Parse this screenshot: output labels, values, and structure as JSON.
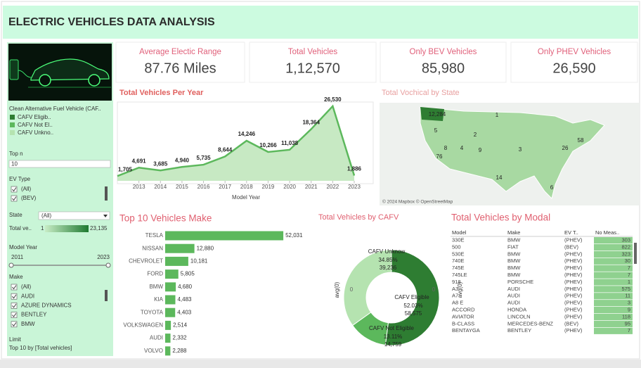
{
  "header": {
    "title": "ELECTRIC VEHICLES DATA ANALYSIS"
  },
  "kpis": [
    {
      "label": "Average Electic Range",
      "value": "87.76 Miles"
    },
    {
      "label": "Total Vehicles",
      "value": "1,12,570"
    },
    {
      "label": "Only BEV Vehicles",
      "value": "85,980"
    },
    {
      "label": "Only PHEV Vehicles",
      "value": "26,590"
    }
  ],
  "filters": {
    "cafv_legend": {
      "title": "Clean Alternative Fuel Vehicle (CAF..",
      "items": [
        "CAFV Eligib..",
        "CAFV Not El..",
        "CAFV Unkno.."
      ]
    },
    "top_n": {
      "label": "Top n",
      "value": "10"
    },
    "ev_type": {
      "label": "EV Type",
      "options": [
        "(All)",
        "(BEV)"
      ]
    },
    "state": {
      "label": "State",
      "value": "(All)"
    },
    "total_vehicles": {
      "label": "Total ve..",
      "min": "1",
      "max": "23,135"
    },
    "model_year": {
      "label": "Model Year",
      "min": "2011",
      "max": "2023"
    },
    "make": {
      "label": "Make",
      "options": [
        "(All)",
        "AUDI",
        "AZURE DYNAMICS",
        "BENTLEY",
        "BMW"
      ]
    },
    "limit": {
      "label": "Limit",
      "value": "Top 10 by [Total vehicles]"
    }
  },
  "chart_data": [
    {
      "type": "line",
      "title": "Total Vehicles Per Year",
      "x": [
        2012,
        2013,
        2014,
        2015,
        2016,
        2017,
        2018,
        2019,
        2020,
        2021,
        2022,
        2023
      ],
      "values": [
        1705,
        4691,
        3685,
        4940,
        5735,
        8644,
        14246,
        10266,
        11038,
        18364,
        26530,
        1886
      ],
      "value_labels": [
        "1,705",
        "4,691",
        "3,685",
        "4,940",
        "5,735",
        "8,644",
        "14,246",
        "10,266",
        "11,038",
        "18,364",
        "26,530",
        "1,886"
      ],
      "xlim": [
        2012,
        2023
      ],
      "xticks": [
        2013,
        2014,
        2015,
        2016,
        2017,
        2018,
        2019,
        2020,
        2021,
        2022,
        2023
      ],
      "ylim": [
        0,
        28000
      ],
      "x_label": "Model Year",
      "color": "#5cb85c"
    },
    {
      "type": "hbar",
      "title": "Top 10 Vehicles Make",
      "categories": [
        "TESLA",
        "NISSAN",
        "CHEVROLET",
        "FORD",
        "BMW",
        "KIA",
        "TOYOTA",
        "VOLKSWAGEN",
        "AUDI",
        "VOLVO"
      ],
      "values": [
        52031,
        12880,
        10181,
        5805,
        4680,
        4483,
        4403,
        2514,
        2332,
        2288
      ],
      "value_labels": [
        "52,031",
        "12,880",
        "10,181",
        "5,805",
        "4,680",
        "4,483",
        "4,403",
        "2,514",
        "2,332",
        "2,288"
      ],
      "xlim": [
        0,
        65000
      ],
      "color": "#5cb85c"
    },
    {
      "type": "donut",
      "title": "Total Vehicles by CAFV",
      "categories": [
        "CAFV Eligible",
        "CAFV Not Eligible",
        "CAFV Unknow"
      ],
      "values": [
        58575,
        14759,
        39236
      ],
      "value_labels": [
        "58,575",
        "14,759",
        "39,236"
      ],
      "percent_labels": [
        "52.03%",
        "13.11%",
        "34.85%"
      ],
      "colors": [
        "#2e7d32",
        "#5cb85c",
        "#b5e3b0"
      ],
      "axis_label": "avg(0)",
      "axis_tick": "0"
    }
  ],
  "map": {
    "title": "Total Vochical by State",
    "labels": [
      "12,284",
      "5",
      "76",
      "14",
      "26",
      "58",
      "6",
      "1",
      "2",
      "3",
      "4",
      "8",
      "9"
    ],
    "attribution": "© 2024 Mapbox © OpenStreetMap"
  },
  "table": {
    "title": "Total Vehicles by Modal",
    "columns": [
      "Model",
      "Make",
      "EV T..",
      "No Meas.."
    ],
    "rows": [
      [
        "330E",
        "BMW",
        "(PHEV)",
        "303"
      ],
      [
        "500",
        "FIAT",
        "(BEV)",
        "822"
      ],
      [
        "530E",
        "BMW",
        "(PHEV)",
        "323"
      ],
      [
        "740E",
        "BMW",
        "(PHEV)",
        "30"
      ],
      [
        "745E",
        "BMW",
        "(PHEV)",
        "7"
      ],
      [
        "745LE",
        "BMW",
        "(PHEV)",
        "7"
      ],
      [
        "918",
        "PORSCHE",
        "(PHEV)",
        "1"
      ],
      [
        "A3",
        "AUDI",
        "(PHEV)",
        "575"
      ],
      [
        "A7",
        "AUDI",
        "(PHEV)",
        "11"
      ],
      [
        "A8 E",
        "AUDI",
        "(PHEV)",
        "3"
      ],
      [
        "ACCORD",
        "HONDA",
        "(PHEV)",
        "9"
      ],
      [
        "AVIATOR",
        "LINCOLN",
        "(PHEV)",
        "118"
      ],
      [
        "B-CLASS",
        "MERCEDES-BENZ",
        "(BEV)",
        "95"
      ],
      [
        "BENTAYGA",
        "BENTLEY",
        "(PHEV)",
        "7"
      ]
    ]
  }
}
